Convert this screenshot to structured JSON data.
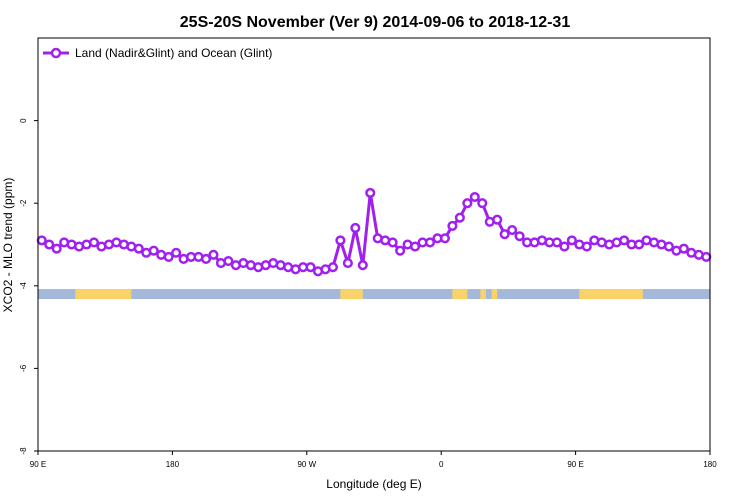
{
  "chart_data": {
    "type": "line",
    "title": "25S-20S November (Ver 9)   2014-09-06 to 2018-12-31",
    "xlabel": "Longitude (deg E)",
    "ylabel": "XCO2 - MLO trend (ppm)",
    "xlim": [
      90,
      450
    ],
    "ylim": [
      -8,
      2
    ],
    "xticks": [
      {
        "value": 90,
        "label": "90 E"
      },
      {
        "value": 162,
        "label": "180"
      },
      {
        "value": 234,
        "label": "90 W"
      },
      {
        "value": 306,
        "label": "0"
      },
      {
        "value": 378,
        "label": "90 E"
      },
      {
        "value": 450,
        "label": "180"
      }
    ],
    "yticks": [
      {
        "value": 0,
        "label": "0"
      },
      {
        "value": -2,
        "label": "-2"
      },
      {
        "value": -4,
        "label": "-4"
      },
      {
        "value": -6,
        "label": "-6"
      },
      {
        "value": -8,
        "label": "-8"
      }
    ],
    "legend": {
      "position": "top-left"
    },
    "grid": false,
    "series": [
      {
        "name": "Land (Nadir&Glint) and Ocean (Glint)",
        "color": "#a020f0",
        "marker": "open-circle",
        "points": [
          [
            92,
            -2.9
          ],
          [
            96,
            -3.0
          ],
          [
            100,
            -3.1
          ],
          [
            104,
            -2.95
          ],
          [
            108,
            -3.0
          ],
          [
            112,
            -3.05
          ],
          [
            116,
            -3.0
          ],
          [
            120,
            -2.95
          ],
          [
            124,
            -3.05
          ],
          [
            128,
            -3.0
          ],
          [
            132,
            -2.95
          ],
          [
            136,
            -3.0
          ],
          [
            140,
            -3.05
          ],
          [
            144,
            -3.1
          ],
          [
            148,
            -3.2
          ],
          [
            152,
            -3.15
          ],
          [
            156,
            -3.25
          ],
          [
            160,
            -3.3
          ],
          [
            164,
            -3.2
          ],
          [
            168,
            -3.35
          ],
          [
            172,
            -3.3
          ],
          [
            176,
            -3.3
          ],
          [
            180,
            -3.35
          ],
          [
            184,
            -3.25
          ],
          [
            188,
            -3.45
          ],
          [
            192,
            -3.4
          ],
          [
            196,
            -3.5
          ],
          [
            200,
            -3.45
          ],
          [
            204,
            -3.5
          ],
          [
            208,
            -3.55
          ],
          [
            212,
            -3.5
          ],
          [
            216,
            -3.45
          ],
          [
            220,
            -3.5
          ],
          [
            224,
            -3.55
          ],
          [
            228,
            -3.6
          ],
          [
            232,
            -3.55
          ],
          [
            236,
            -3.55
          ],
          [
            240,
            -3.65
          ],
          [
            244,
            -3.6
          ],
          [
            248,
            -3.55
          ],
          [
            252,
            -2.9
          ],
          [
            256,
            -3.45
          ],
          [
            260,
            -2.6
          ],
          [
            264,
            -3.5
          ],
          [
            268,
            -1.75
          ],
          [
            272,
            -2.85
          ],
          [
            276,
            -2.9
          ],
          [
            280,
            -2.95
          ],
          [
            284,
            -3.15
          ],
          [
            288,
            -3.0
          ],
          [
            292,
            -3.05
          ],
          [
            296,
            -2.95
          ],
          [
            300,
            -2.95
          ],
          [
            304,
            -2.85
          ],
          [
            308,
            -2.85
          ],
          [
            312,
            -2.55
          ],
          [
            316,
            -2.35
          ],
          [
            320,
            -2.0
          ],
          [
            324,
            -1.85
          ],
          [
            328,
            -2.0
          ],
          [
            332,
            -2.45
          ],
          [
            336,
            -2.4
          ],
          [
            340,
            -2.75
          ],
          [
            344,
            -2.65
          ],
          [
            348,
            -2.8
          ],
          [
            352,
            -2.95
          ],
          [
            356,
            -2.95
          ],
          [
            360,
            -2.9
          ],
          [
            364,
            -2.95
          ],
          [
            368,
            -2.95
          ],
          [
            372,
            -3.05
          ],
          [
            376,
            -2.9
          ],
          [
            380,
            -3.0
          ],
          [
            384,
            -3.05
          ],
          [
            388,
            -2.9
          ],
          [
            392,
            -2.95
          ],
          [
            396,
            -3.0
          ],
          [
            400,
            -2.95
          ],
          [
            404,
            -2.9
          ],
          [
            408,
            -3.0
          ],
          [
            412,
            -3.0
          ],
          [
            416,
            -2.9
          ],
          [
            420,
            -2.95
          ],
          [
            424,
            -3.0
          ],
          [
            428,
            -3.05
          ],
          [
            432,
            -3.15
          ],
          [
            436,
            -3.1
          ],
          [
            440,
            -3.2
          ],
          [
            444,
            -3.25
          ],
          [
            448,
            -3.3
          ]
        ]
      }
    ],
    "surface_band": {
      "y_center": -4.2,
      "ocean_color": "#a4b8da",
      "land_color": "#fad26a",
      "land_segments": [
        [
          110,
          140
        ],
        [
          252,
          264
        ],
        [
          312,
          320
        ],
        [
          327,
          330
        ],
        [
          333,
          336
        ],
        [
          380,
          414
        ]
      ]
    }
  }
}
